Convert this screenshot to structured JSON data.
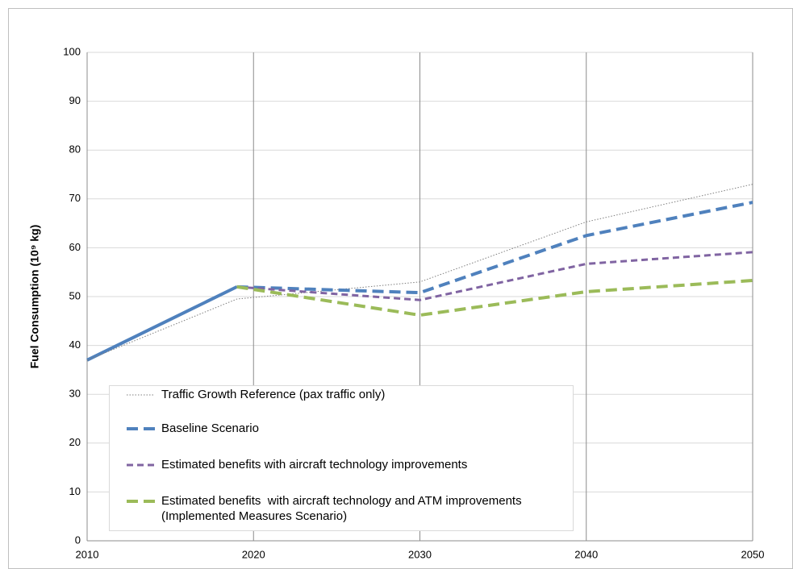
{
  "chart_data": {
    "type": "line",
    "y_label": "Fuel Consumption (10⁹ kg)",
    "x": [
      2010,
      2019,
      2030,
      2040,
      2050
    ],
    "xlim": [
      2010,
      2050
    ],
    "xticks": [
      2010,
      2020,
      2030,
      2040,
      2050
    ],
    "ylim": [
      0,
      100
    ],
    "yticks": [
      0,
      10,
      20,
      30,
      40,
      50,
      60,
      70,
      80,
      90,
      100
    ],
    "grid": true,
    "series": [
      {
        "color": "#4f81bd",
        "line_style": "solid",
        "values": [
          37,
          52,
          null,
          null,
          null
        ]
      },
      {
        "name": "Traffic Growth Reference (pax traffic only)",
        "color": "#7f7f7f",
        "line_style": "dotted",
        "values": [
          37,
          49.5,
          53,
          65.3,
          73
        ]
      },
      {
        "name": "Baseline Scenario",
        "color": "#4f81bd",
        "line_style": "dashed",
        "values": [
          null,
          52,
          50.8,
          62.5,
          69.3
        ]
      },
      {
        "name": "Estimated benefits with aircraft technology improvements",
        "color": "#8064a2",
        "line_style": "short-dashed",
        "values": [
          null,
          52,
          49.3,
          56.7,
          59.1
        ]
      },
      {
        "name": "Estimated benefits  with aircraft technology and ATM improvements (Implemented Measures Scenario)",
        "color": "#9bbb59",
        "line_style": "dashed",
        "values": [
          null,
          52,
          46.2,
          51,
          53.3
        ]
      }
    ]
  }
}
